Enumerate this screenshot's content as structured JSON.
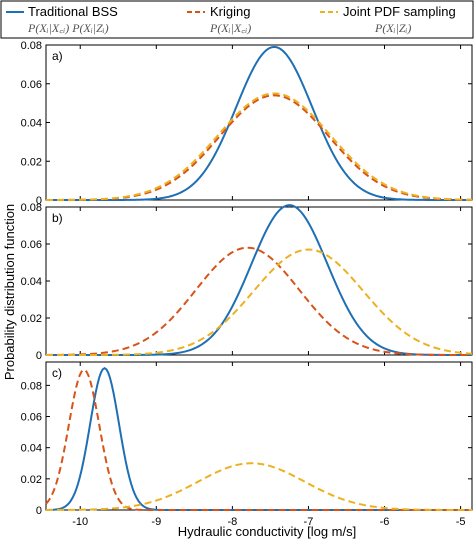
{
  "chart_data": {
    "type": "line",
    "xlabel": "Hydraulic conductivity [log m/s]",
    "ylabel": "Probability distribution function",
    "xlim": [
      -10.45,
      -4.85
    ],
    "x_ticks": [
      -10,
      -9,
      -8,
      -7,
      -6,
      -5
    ],
    "x_tick_labels": [
      "-10",
      "-9",
      "-8",
      "-7",
      "-6",
      "-5"
    ],
    "legend_placement": "top",
    "grid": false,
    "legend": [
      {
        "name": "Traditional BSS",
        "formula": "P(Xᵢ|X꜀ᵢ) P(Xᵢ|Zᵢ)",
        "color": "#1f6fb4",
        "dash": "solid"
      },
      {
        "name": "Kriging",
        "formula": "P(Xᵢ|X꜀ᵢ)",
        "color": "#d95319",
        "dash": "dashed"
      },
      {
        "name": "Joint PDF sampling",
        "formula": "P(Xᵢ|Zᵢ)",
        "color": "#edb120",
        "dash": "dashed"
      }
    ],
    "panels": [
      {
        "label": "a)",
        "ylim": [
          0,
          0.08
        ],
        "y_ticks": [
          0,
          0.02,
          0.04,
          0.06,
          0.08
        ],
        "y_tick_labels": [
          "0",
          "0.02",
          "0.04",
          "0.06",
          "0.08"
        ],
        "series": [
          {
            "name": "Traditional BSS",
            "mean": -7.45,
            "sd": 0.5,
            "peak": 0.079
          },
          {
            "name": "Kriging",
            "mean": -7.45,
            "sd": 0.72,
            "peak": 0.054
          },
          {
            "name": "Joint PDF sampling",
            "mean": -7.45,
            "sd": 0.74,
            "peak": 0.055
          }
        ]
      },
      {
        "label": "b)",
        "ylim": [
          0,
          0.08
        ],
        "y_ticks": [
          0,
          0.02,
          0.04,
          0.06,
          0.08
        ],
        "y_tick_labels": [
          "0",
          "0.02",
          "0.04",
          "0.06",
          "0.08"
        ],
        "series": [
          {
            "name": "Traditional BSS",
            "mean": -7.25,
            "sd": 0.5,
            "peak": 0.081
          },
          {
            "name": "Kriging",
            "mean": -7.8,
            "sd": 0.68,
            "peak": 0.058
          },
          {
            "name": "Joint PDF sampling",
            "mean": -7.0,
            "sd": 0.72,
            "peak": 0.057
          }
        ]
      },
      {
        "label": "c)",
        "ylim": [
          0,
          0.095
        ],
        "y_ticks": [
          0,
          0.02,
          0.04,
          0.06,
          0.08
        ],
        "y_tick_labels": [
          "0",
          "0.02",
          "0.04",
          "0.06",
          "0.08"
        ],
        "series": [
          {
            "name": "Traditional BSS",
            "mean": -9.68,
            "sd": 0.19,
            "peak": 0.091
          },
          {
            "name": "Kriging",
            "mean": -9.95,
            "sd": 0.2,
            "peak": 0.09
          },
          {
            "name": "Joint PDF sampling",
            "mean": -7.75,
            "sd": 0.7,
            "peak": 0.03
          }
        ]
      }
    ]
  }
}
